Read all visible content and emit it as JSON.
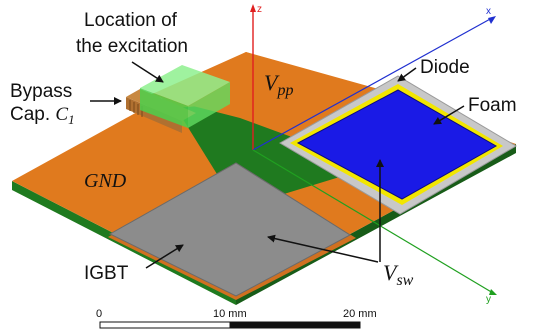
{
  "labels": {
    "excitation": "Location of the excitation",
    "excitation_line1": "Location of",
    "excitation_line2": "the excitation",
    "bypass_line1": "Bypass",
    "bypass_line2_text": "Cap.",
    "bypass_symbol": "C",
    "bypass_subscript": "1",
    "diode": "Diode",
    "foam": "Foam",
    "igbt": "IGBT",
    "gnd": "GND",
    "vpp_main": "V",
    "vpp_sub": "pp",
    "vsw_main": "V",
    "vsw_sub": "sw"
  },
  "axes": {
    "z": "z",
    "y": "y",
    "x": "x"
  },
  "scale_bar": {
    "ticks": [
      "0",
      "10 mm",
      "20 mm"
    ]
  },
  "colors": {
    "copper": "#e07a1e",
    "substrate_green": "#1f7a1f",
    "pad_gray": "#8c8c8c",
    "diode_silver": "#c8c8c8",
    "foam_blue": "#1a1ae6",
    "yellow_ring": "#f2e600",
    "excitation_green": "#6ee06e",
    "capacitor": "#b07030",
    "axis_red": "#e02020",
    "axis_blue": "#2030d0",
    "axis_green": "#20a020"
  }
}
